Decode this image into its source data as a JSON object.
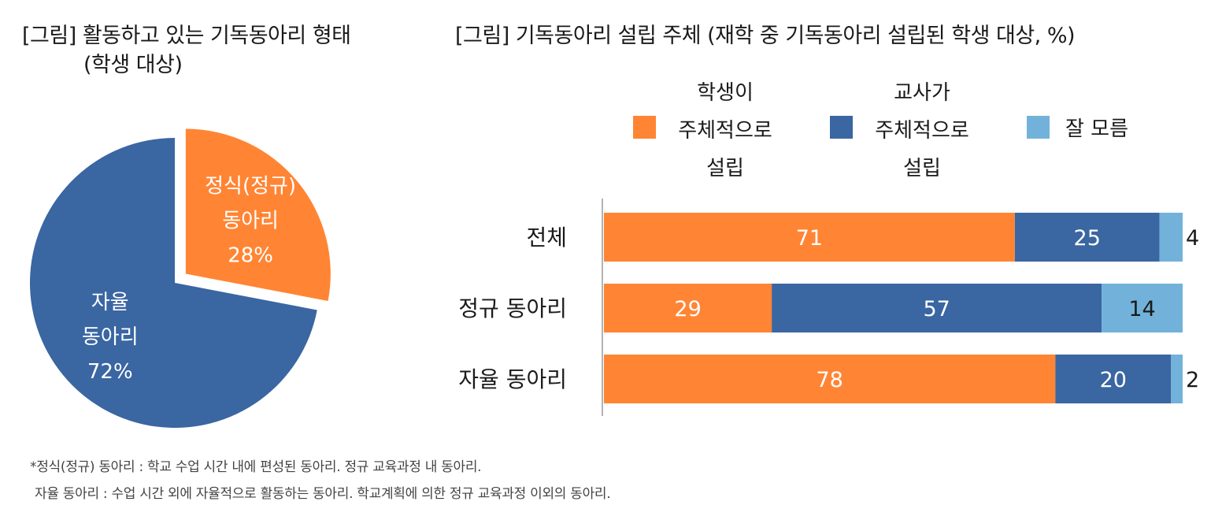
{
  "colors": {
    "student": "#FF8534",
    "teacher": "#3A66A2",
    "unknown": "#72B2DA",
    "text": "#1a1a1a",
    "axis": "#9a9a9a"
  },
  "chart_data": [
    {
      "type": "pie",
      "title": "[그림] 활동하고 있는 기독동아리 형태",
      "subtitle": "(학생 대상)",
      "slices": [
        {
          "label_lines": [
            "정식(정규)",
            "동아리"
          ],
          "value": 28,
          "value_text": "28%",
          "color": "#FF8534",
          "exploded": true
        },
        {
          "label_lines": [
            "자율",
            "동아리"
          ],
          "value": 72,
          "value_text": "72%",
          "color": "#3A66A2",
          "exploded": false
        }
      ]
    },
    {
      "type": "bar",
      "orientation": "horizontal",
      "stacked": true,
      "title": "[그림] 기독동아리 설립 주체 (재학 중 기독동아리 설립된 학생 대상, %)",
      "categories": [
        "전체",
        "정규 동아리",
        "자율 동아리"
      ],
      "series": [
        {
          "name": "학생이 주체적으로 설립",
          "legend_lines": [
            "학생이",
            "주체적으로",
            "설립"
          ],
          "color": "#FF8534",
          "values": [
            71,
            29,
            78
          ]
        },
        {
          "name": "교사가 주체적으로 설립",
          "legend_lines": [
            "교사가",
            "주체적으로",
            "설립"
          ],
          "color": "#3A66A2",
          "values": [
            25,
            57,
            20
          ]
        },
        {
          "name": "잘 모름",
          "legend_lines": [
            "잘 모름"
          ],
          "color": "#72B2DA",
          "values": [
            4,
            14,
            2
          ]
        }
      ],
      "xlim": [
        0,
        100
      ],
      "legend_position": "top"
    }
  ],
  "footnotes": [
    "*정식(정규) 동아리 : 학교 수업 시간 내에 편성된 동아리. 정규 교육과정 내 동아리.",
    "자율 동아리 : 수업 시간 외에 자율적으로 활동하는 동아리. 학교계획에 의한 정규 교육과정 이외의 동아리."
  ]
}
